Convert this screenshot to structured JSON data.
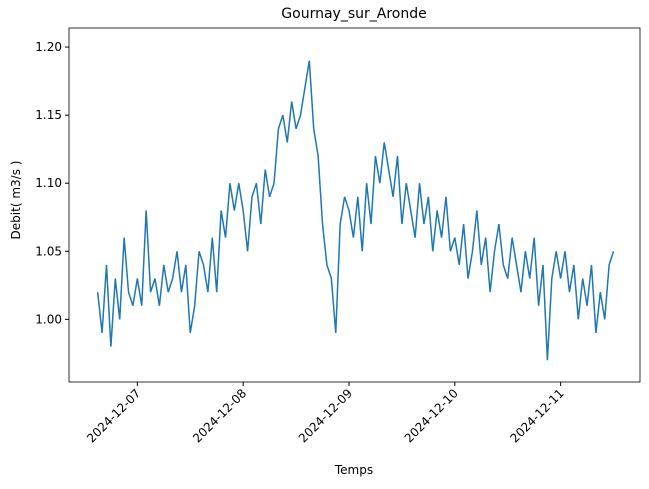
{
  "chart_data": {
    "type": "line",
    "title": "Gournay_sur_Aronde",
    "x_label": "Temps",
    "y_label": "Debit( m3/s )",
    "color": "#1f77b4",
    "x": [
      "2024-12-06 15:00",
      "2024-12-06 16:00",
      "2024-12-06 17:00",
      "2024-12-06 18:00",
      "2024-12-06 19:00",
      "2024-12-06 20:00",
      "2024-12-06 21:00",
      "2024-12-06 22:00",
      "2024-12-06 23:00",
      "2024-12-07 00:00",
      "2024-12-07 01:00",
      "2024-12-07 02:00",
      "2024-12-07 03:00",
      "2024-12-07 04:00",
      "2024-12-07 05:00",
      "2024-12-07 06:00",
      "2024-12-07 07:00",
      "2024-12-07 08:00",
      "2024-12-07 09:00",
      "2024-12-07 10:00",
      "2024-12-07 11:00",
      "2024-12-07 12:00",
      "2024-12-07 13:00",
      "2024-12-07 14:00",
      "2024-12-07 15:00",
      "2024-12-07 16:00",
      "2024-12-07 17:00",
      "2024-12-07 18:00",
      "2024-12-07 19:00",
      "2024-12-07 20:00",
      "2024-12-07 21:00",
      "2024-12-07 22:00",
      "2024-12-07 23:00",
      "2024-12-08 00:00",
      "2024-12-08 01:00",
      "2024-12-08 02:00",
      "2024-12-08 03:00",
      "2024-12-08 04:00",
      "2024-12-08 05:00",
      "2024-12-08 06:00",
      "2024-12-08 07:00",
      "2024-12-08 08:00",
      "2024-12-08 09:00",
      "2024-12-08 10:00",
      "2024-12-08 11:00",
      "2024-12-08 12:00",
      "2024-12-08 13:00",
      "2024-12-08 14:00",
      "2024-12-08 15:00",
      "2024-12-08 16:00",
      "2024-12-08 17:00",
      "2024-12-08 18:00",
      "2024-12-08 19:00",
      "2024-12-08 20:00",
      "2024-12-08 21:00",
      "2024-12-08 22:00",
      "2024-12-08 23:00",
      "2024-12-09 00:00",
      "2024-12-09 01:00",
      "2024-12-09 02:00",
      "2024-12-09 03:00",
      "2024-12-09 04:00",
      "2024-12-09 05:00",
      "2024-12-09 06:00",
      "2024-12-09 07:00",
      "2024-12-09 08:00",
      "2024-12-09 09:00",
      "2024-12-09 10:00",
      "2024-12-09 11:00",
      "2024-12-09 12:00",
      "2024-12-09 13:00",
      "2024-12-09 14:00",
      "2024-12-09 15:00",
      "2024-12-09 16:00",
      "2024-12-09 17:00",
      "2024-12-09 18:00",
      "2024-12-09 19:00",
      "2024-12-09 20:00",
      "2024-12-09 21:00",
      "2024-12-09 22:00",
      "2024-12-09 23:00",
      "2024-12-10 00:00",
      "2024-12-10 01:00",
      "2024-12-10 02:00",
      "2024-12-10 03:00",
      "2024-12-10 04:00",
      "2024-12-10 05:00",
      "2024-12-10 06:00",
      "2024-12-10 07:00",
      "2024-12-10 08:00",
      "2024-12-10 09:00",
      "2024-12-10 10:00",
      "2024-12-10 11:00",
      "2024-12-10 12:00",
      "2024-12-10 13:00",
      "2024-12-10 14:00",
      "2024-12-10 15:00",
      "2024-12-10 16:00",
      "2024-12-10 17:00",
      "2024-12-10 18:00",
      "2024-12-10 19:00",
      "2024-12-10 20:00",
      "2024-12-10 21:00",
      "2024-12-10 22:00",
      "2024-12-10 23:00",
      "2024-12-11 00:00",
      "2024-12-11 01:00",
      "2024-12-11 02:00",
      "2024-12-11 03:00",
      "2024-12-11 04:00",
      "2024-12-11 05:00",
      "2024-12-11 06:00",
      "2024-12-11 07:00",
      "2024-12-11 08:00",
      "2024-12-11 09:00",
      "2024-12-11 10:00",
      "2024-12-11 11:00",
      "2024-12-11 12:00"
    ],
    "values": [
      1.02,
      0.99,
      1.04,
      0.98,
      1.03,
      1.0,
      1.06,
      1.02,
      1.01,
      1.03,
      1.01,
      1.08,
      1.02,
      1.03,
      1.01,
      1.04,
      1.02,
      1.03,
      1.05,
      1.02,
      1.04,
      0.99,
      1.01,
      1.05,
      1.04,
      1.02,
      1.06,
      1.02,
      1.08,
      1.06,
      1.1,
      1.08,
      1.1,
      1.08,
      1.05,
      1.09,
      1.1,
      1.07,
      1.11,
      1.09,
      1.1,
      1.14,
      1.15,
      1.13,
      1.16,
      1.14,
      1.15,
      1.17,
      1.19,
      1.14,
      1.12,
      1.07,
      1.04,
      1.03,
      0.99,
      1.07,
      1.09,
      1.08,
      1.06,
      1.09,
      1.05,
      1.1,
      1.07,
      1.12,
      1.1,
      1.13,
      1.11,
      1.09,
      1.12,
      1.07,
      1.1,
      1.08,
      1.06,
      1.1,
      1.07,
      1.09,
      1.05,
      1.08,
      1.06,
      1.09,
      1.05,
      1.06,
      1.04,
      1.07,
      1.03,
      1.05,
      1.08,
      1.04,
      1.06,
      1.02,
      1.05,
      1.07,
      1.04,
      1.03,
      1.06,
      1.04,
      1.02,
      1.05,
      1.03,
      1.06,
      1.01,
      1.04,
      0.97,
      1.03,
      1.05,
      1.03,
      1.05,
      1.02,
      1.04,
      1.0,
      1.03,
      1.01,
      1.04,
      0.99,
      1.02,
      1.0,
      1.04,
      1.05
    ],
    "xlim": [
      "2024-12-06 08:30",
      "2024-12-11 18:00"
    ],
    "xticks": [
      "2024-12-07",
      "2024-12-08",
      "2024-12-09",
      "2024-12-10",
      "2024-12-11"
    ],
    "ylim": [
      0.954,
      1.214
    ],
    "yticks": [
      {
        "value": 1.0,
        "label": "1.00"
      },
      {
        "value": 1.05,
        "label": "1.05"
      },
      {
        "value": 1.1,
        "label": "1.10"
      },
      {
        "value": 1.15,
        "label": "1.15"
      },
      {
        "value": 1.2,
        "label": "1.20"
      }
    ]
  }
}
